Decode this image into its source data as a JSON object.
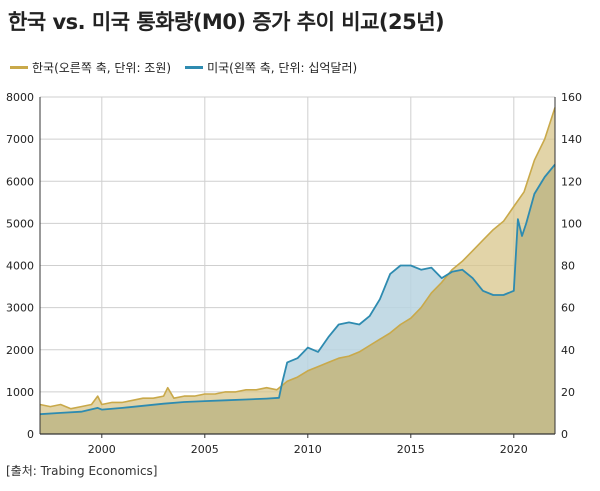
{
  "title": "한국 vs. 미국 통화량(M0) 증가 추이 비교(25년)",
  "source": "[출처: Trabing Economics]",
  "colors": {
    "korea_line": "#c9a94a",
    "korea_fill": "#d8c68b",
    "us_line": "#2e8bb0",
    "us_fill": "#b9d3e1",
    "overlap_fill": "#c2b988",
    "grid": "#cfcfcf",
    "axis": "#333333"
  },
  "legend": [
    {
      "label": "한국(오른쪽 축, 단위: 조원)",
      "series": "korea"
    },
    {
      "label": "미국(왼쪽 축, 단위: 십억달러)",
      "series": "us"
    }
  ],
  "chart_data": {
    "type": "area",
    "title": "한국 vs. 미국 통화량(M0) 증가 추이 비교(25년)",
    "xlim": [
      1997,
      2022
    ],
    "x_ticks": [
      2000,
      2005,
      2010,
      2015,
      2020
    ],
    "ylim_left": [
      0,
      8000
    ],
    "y_ticks_left": [
      0,
      1000,
      2000,
      3000,
      4000,
      5000,
      6000,
      7000,
      8000
    ],
    "ylim_right": [
      0,
      160
    ],
    "y_ticks_right": [
      0,
      20,
      40,
      60,
      80,
      100,
      120,
      140,
      160
    ],
    "grid": true,
    "legend_position": "top-left",
    "series": [
      {
        "name": "한국(오른쪽 축, 단위: 조원)",
        "axis": "right",
        "x": [
          1997,
          1997.5,
          1998,
          1998.5,
          1999,
          1999.5,
          1999.8,
          2000,
          2000.5,
          2001,
          2001.5,
          2002,
          2002.5,
          2003,
          2003.2,
          2003.5,
          2004,
          2004.5,
          2005,
          2005.5,
          2006,
          2006.5,
          2007,
          2007.5,
          2008,
          2008.5,
          2009,
          2009.5,
          2010,
          2010.5,
          2011,
          2011.5,
          2012,
          2012.5,
          2013,
          2013.5,
          2014,
          2014.5,
          2015,
          2015.5,
          2016,
          2016.5,
          2017,
          2017.5,
          2018,
          2018.5,
          2019,
          2019.5,
          2020,
          2020.5,
          2021,
          2021.5,
          2022
        ],
        "values": [
          14,
          13,
          14,
          12,
          13,
          14,
          18,
          14,
          15,
          15,
          16,
          17,
          17,
          18,
          22,
          17,
          18,
          18,
          19,
          19,
          20,
          20,
          21,
          21,
          22,
          21,
          25,
          27,
          30,
          32,
          34,
          36,
          37,
          39,
          42,
          45,
          48,
          52,
          55,
          60,
          67,
          72,
          78,
          82,
          87,
          92,
          97,
          101,
          108,
          115,
          130,
          140,
          155
        ]
      },
      {
        "name": "미국(왼쪽 축, 단위: 십억달러)",
        "axis": "left",
        "x": [
          1997,
          1998,
          1999,
          1999.8,
          2000,
          2001,
          2002,
          2003,
          2004,
          2005,
          2006,
          2007,
          2008,
          2008.6,
          2008.75,
          2009,
          2009.5,
          2010,
          2010.5,
          2011,
          2011.5,
          2012,
          2012.5,
          2013,
          2013.5,
          2014,
          2014.5,
          2015,
          2015.5,
          2016,
          2016.5,
          2017,
          2017.5,
          2018,
          2018.5,
          2019,
          2019.5,
          2020,
          2020.2,
          2020.4,
          2020.6,
          2021,
          2021.5,
          2022
        ],
        "values": [
          470,
          500,
          530,
          620,
          580,
          620,
          670,
          720,
          760,
          780,
          800,
          820,
          840,
          860,
          1200,
          1700,
          1800,
          2050,
          1950,
          2300,
          2600,
          2650,
          2600,
          2800,
          3200,
          3800,
          4000,
          4000,
          3900,
          3950,
          3700,
          3850,
          3900,
          3700,
          3400,
          3300,
          3300,
          3400,
          5100,
          4700,
          5000,
          5700,
          6100,
          6400
        ]
      }
    ]
  }
}
